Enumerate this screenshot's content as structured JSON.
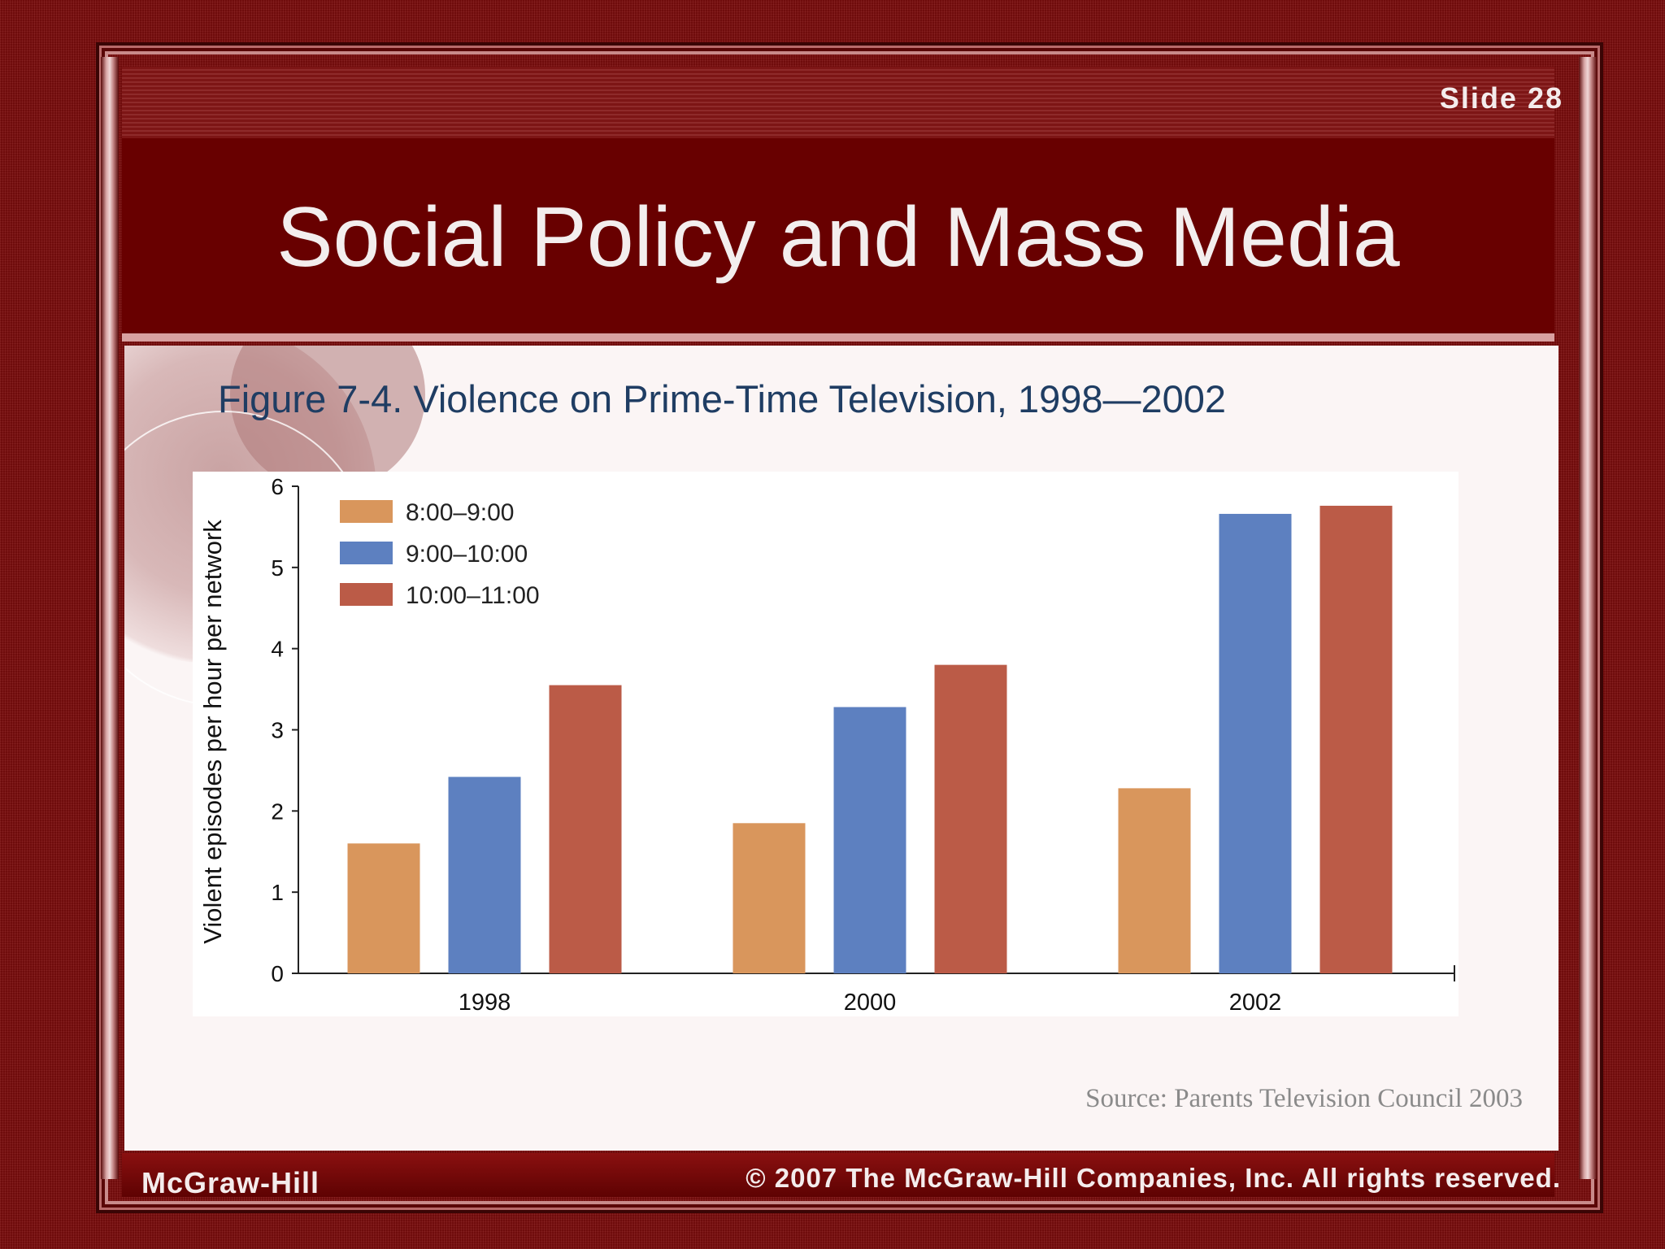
{
  "slide": {
    "number_label": "Slide 28",
    "title": "Social Policy and Mass Media",
    "figure_caption": "Figure 7-4. Violence on Prime-Time Television, 1998—2002",
    "source": "Source: Parents Television Council 2003",
    "footer_left": "McGraw-Hill",
    "footer_right": "© 2007 The McGraw-Hill Companies, Inc. All rights reserved."
  },
  "chart_data": {
    "type": "bar",
    "title": "",
    "xlabel": "",
    "ylabel": "Violent episodes per hour per network",
    "categories": [
      "1998",
      "2000",
      "2002"
    ],
    "ylim": [
      0,
      6
    ],
    "yticks": [
      "0",
      "1",
      "2",
      "3",
      "4",
      "5",
      "6"
    ],
    "legend_position": "top-left",
    "grid": false,
    "series": [
      {
        "name": "8:00–9:00",
        "color": "#d9965c",
        "values": [
          1.6,
          1.85,
          2.28
        ]
      },
      {
        "name": "9:00–10:00",
        "color": "#5d80c0",
        "values": [
          2.42,
          3.28,
          5.66
        ]
      },
      {
        "name": "10:00–11:00",
        "color": "#bb5b47",
        "values": [
          3.55,
          3.8,
          5.76
        ]
      }
    ]
  }
}
